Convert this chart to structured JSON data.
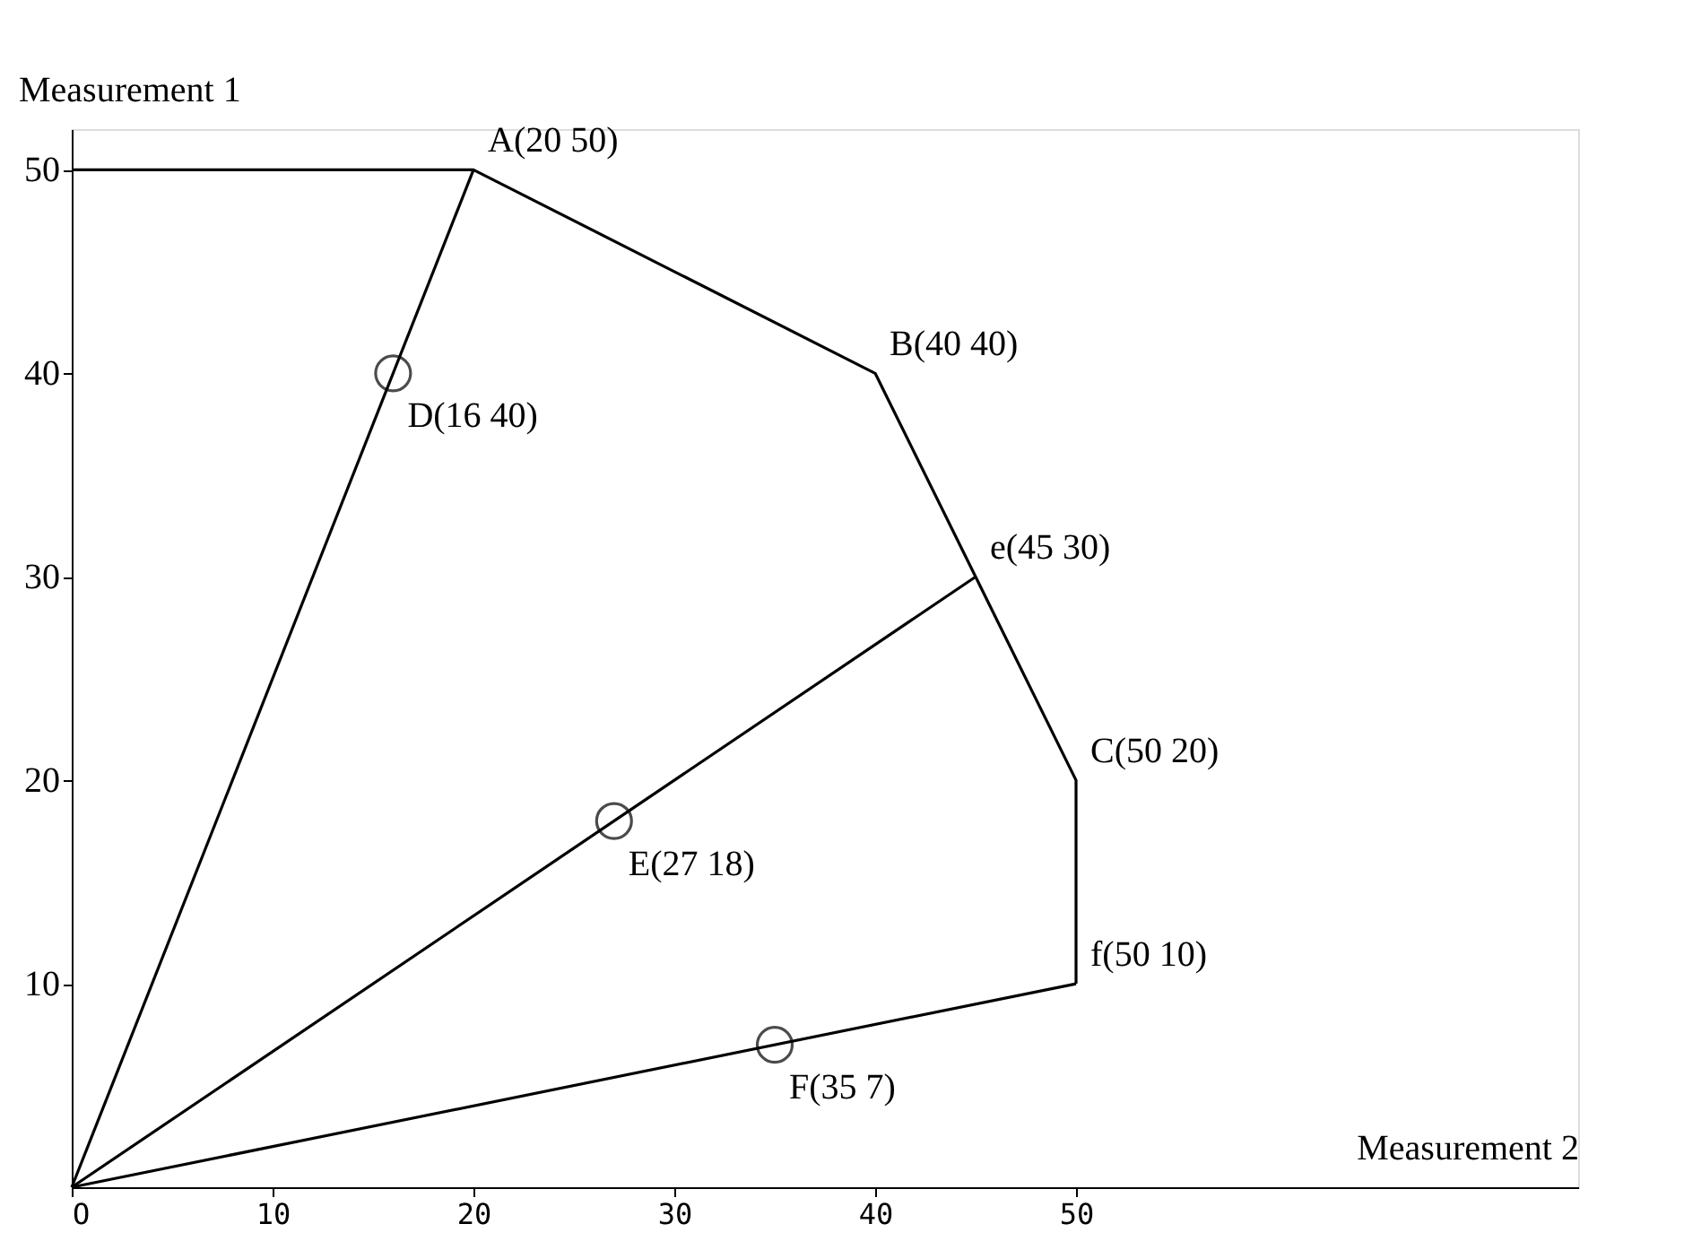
{
  "chart_data": {
    "type": "line",
    "xlabel": "Measurement 2",
    "ylabel": "Measurement 1",
    "xlim": [
      0,
      75
    ],
    "ylim": [
      0,
      52
    ],
    "xticks": [
      {
        "value": 0,
        "label": "O"
      },
      10,
      20,
      30,
      40,
      50
    ],
    "yticks": [
      10,
      20,
      30,
      40,
      50
    ],
    "grid": false,
    "line_style": "solid",
    "marker": "none",
    "series": [
      {
        "color": "#000000",
        "x": [
          0,
          20,
          40,
          45,
          50,
          50
        ],
        "values": [
          50,
          50,
          40,
          30,
          20,
          10
        ]
      },
      {
        "color": "#000000",
        "x": [
          0,
          20
        ],
        "values": [
          0,
          50
        ]
      },
      {
        "color": "#000000",
        "x": [
          0,
          45
        ],
        "values": [
          0,
          30
        ]
      },
      {
        "color": "#000000",
        "x": [
          0,
          50
        ],
        "values": [
          0,
          10
        ]
      },
      {
        "type": "scatter",
        "color": "#000000",
        "marker": "circle",
        "x": [
          16,
          27,
          35
        ],
        "values": [
          40,
          18,
          7
        ]
      }
    ],
    "annotations": [
      {
        "text": "A(20 50)",
        "x": 20,
        "y": 50
      },
      {
        "text": "B(40 40)",
        "x": 40,
        "y": 40
      },
      {
        "text": "e(45 30)",
        "x": 45,
        "y": 30
      },
      {
        "text": "C(50 20)",
        "x": 50,
        "y": 20
      },
      {
        "text": "f(50 10)",
        "x": 50,
        "y": 10
      },
      {
        "text": "D(16 40)",
        "x": 16,
        "y": 40
      },
      {
        "text": "E(27 18)",
        "x": 27,
        "y": 18
      },
      {
        "text": "F(35  7)",
        "x": 35,
        "y": 7
      }
    ]
  }
}
